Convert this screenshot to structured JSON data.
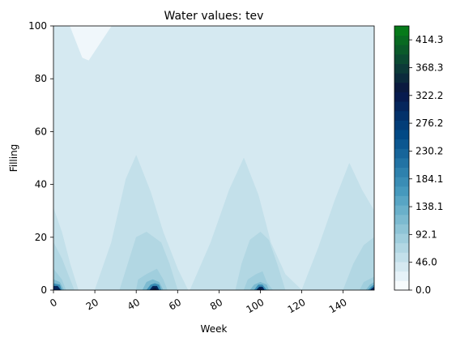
{
  "chart_data": {
    "type": "heatmap",
    "subtype": "filled-contour",
    "title": "Water values: tev",
    "xlabel": "Week",
    "ylabel": "Filling",
    "xlim": [
      0,
      155
    ],
    "ylim": [
      0,
      100
    ],
    "xticks": [
      "0",
      "20",
      "40",
      "60",
      "80",
      "100",
      "120",
      "140"
    ],
    "yticks": [
      "0",
      "20",
      "40",
      "60",
      "80",
      "100"
    ],
    "colorbar": {
      "min": 0.0,
      "max": 437.3,
      "tick_labels": [
        "0.0",
        "46.0",
        "92.1",
        "138.1",
        "184.1",
        "230.2",
        "276.2",
        "322.2",
        "368.3",
        "414.3"
      ],
      "colors": [
        "#f7fbfd",
        "#e6f2f8",
        "#d5e9f1",
        "#c3e0ea",
        "#b2d7e3",
        "#a0cedd",
        "#8ec4d6",
        "#7cbad0",
        "#6ab0ca",
        "#58a5c4",
        "#4699bd",
        "#3a8db5",
        "#2e81ad",
        "#2273a4",
        "#17659a",
        "#0c5790",
        "#024985",
        "#023d78",
        "#03316a",
        "#05265c",
        "#071b4e",
        "#0a1a3f",
        "#0b2a3c",
        "#0c3a38",
        "#0b4a32",
        "#0a5a2a",
        "#086a22",
        "#067a1a"
      ]
    },
    "regions": [
      {
        "level": 0,
        "color": "#d5e9f1",
        "points": [
          [
            0,
            0
          ],
          [
            155,
            0
          ],
          [
            155,
            100
          ],
          [
            0,
            100
          ]
        ]
      },
      {
        "level": -1,
        "color": "#f0f7fb",
        "points": [
          [
            8,
            100
          ],
          [
            14,
            88
          ],
          [
            17,
            87
          ],
          [
            28,
            100
          ]
        ]
      },
      {
        "level": 1,
        "color": "#c3e0ea",
        "points": [
          [
            0,
            31
          ],
          [
            4,
            22
          ],
          [
            8,
            10
          ],
          [
            12,
            0
          ],
          [
            0,
            0
          ]
        ]
      },
      {
        "level": 1,
        "color": "#c3e0ea",
        "points": [
          [
            20,
            0
          ],
          [
            28,
            18
          ],
          [
            35,
            42
          ],
          [
            40,
            51
          ],
          [
            47,
            37
          ],
          [
            53,
            22
          ],
          [
            60,
            8
          ],
          [
            65,
            0
          ]
        ]
      },
      {
        "level": 1,
        "color": "#c3e0ea",
        "points": [
          [
            66,
            0
          ],
          [
            76,
            18
          ],
          [
            85,
            38
          ],
          [
            92,
            50
          ],
          [
            99,
            36
          ],
          [
            105,
            18
          ],
          [
            112,
            6
          ],
          [
            120,
            0
          ]
        ]
      },
      {
        "level": 1,
        "color": "#c3e0ea",
        "points": [
          [
            120,
            0
          ],
          [
            128,
            16
          ],
          [
            136,
            34
          ],
          [
            143,
            48
          ],
          [
            149,
            38
          ],
          [
            155,
            30
          ],
          [
            155,
            0
          ]
        ]
      },
      {
        "level": 2,
        "color": "#b2d7e3",
        "points": [
          [
            0,
            18
          ],
          [
            4,
            12
          ],
          [
            7,
            6
          ],
          [
            10,
            0
          ],
          [
            0,
            0
          ]
        ]
      },
      {
        "level": 2,
        "color": "#b2d7e3",
        "points": [
          [
            32,
            0
          ],
          [
            36,
            10
          ],
          [
            40,
            20
          ],
          [
            45,
            22
          ],
          [
            52,
            18
          ],
          [
            56,
            10
          ],
          [
            60,
            0
          ]
        ]
      },
      {
        "level": 2,
        "color": "#b2d7e3",
        "points": [
          [
            88,
            0
          ],
          [
            91,
            10
          ],
          [
            95,
            19
          ],
          [
            100,
            22
          ],
          [
            104,
            19
          ],
          [
            108,
            10
          ],
          [
            112,
            0
          ]
        ]
      },
      {
        "level": 2,
        "color": "#b2d7e3",
        "points": [
          [
            140,
            0
          ],
          [
            145,
            10
          ],
          [
            150,
            17
          ],
          [
            155,
            20
          ],
          [
            155,
            0
          ]
        ]
      },
      {
        "level": 3,
        "color": "#a0cedd",
        "points": [
          [
            0,
            8
          ],
          [
            4,
            4
          ],
          [
            6,
            0
          ],
          [
            0,
            0
          ]
        ]
      },
      {
        "level": 3,
        "color": "#a0cedd",
        "points": [
          [
            40,
            0
          ],
          [
            41,
            4
          ],
          [
            45,
            6
          ],
          [
            50,
            8
          ],
          [
            53,
            4
          ],
          [
            55,
            0
          ]
        ]
      },
      {
        "level": 3,
        "color": "#a0cedd",
        "points": [
          [
            92,
            0
          ],
          [
            94,
            4
          ],
          [
            98,
            6
          ],
          [
            101,
            7
          ],
          [
            103,
            3
          ],
          [
            106,
            0
          ]
        ]
      },
      {
        "level": 3,
        "color": "#a0cedd",
        "points": [
          [
            148,
            0
          ],
          [
            150,
            3
          ],
          [
            155,
            5
          ],
          [
            155,
            0
          ]
        ]
      },
      {
        "level": 4,
        "color": "#7cbad0",
        "points": [
          [
            0,
            4
          ],
          [
            3,
            3
          ],
          [
            5,
            0
          ],
          [
            0,
            0
          ]
        ]
      },
      {
        "level": 4,
        "color": "#7cbad0",
        "points": [
          [
            43,
            0
          ],
          [
            45,
            3
          ],
          [
            48,
            4
          ],
          [
            51,
            3
          ],
          [
            53,
            0
          ]
        ]
      },
      {
        "level": 4,
        "color": "#7cbad0",
        "points": [
          [
            95,
            0
          ],
          [
            97,
            2
          ],
          [
            100,
            3
          ],
          [
            103,
            2
          ],
          [
            104,
            0
          ]
        ]
      },
      {
        "level": 4,
        "color": "#7cbad0",
        "points": [
          [
            151,
            0
          ],
          [
            153,
            2
          ],
          [
            155,
            3
          ],
          [
            155,
            0
          ]
        ]
      },
      {
        "level": 5,
        "color": "#3a8db5",
        "points": [
          [
            0,
            2.5
          ],
          [
            3,
            2
          ],
          [
            4,
            0
          ],
          [
            0,
            0
          ]
        ]
      },
      {
        "level": 5,
        "color": "#3a8db5",
        "points": [
          [
            45,
            0
          ],
          [
            47,
            2
          ],
          [
            49,
            2.5
          ],
          [
            51,
            2
          ],
          [
            52,
            0
          ]
        ]
      },
      {
        "level": 5,
        "color": "#3a8db5",
        "points": [
          [
            97,
            0
          ],
          [
            99,
            2
          ],
          [
            101,
            2
          ],
          [
            103,
            0
          ]
        ]
      },
      {
        "level": 5,
        "color": "#3a8db5",
        "points": [
          [
            152,
            0
          ],
          [
            154,
            1.5
          ],
          [
            155,
            2
          ],
          [
            155,
            0
          ]
        ]
      },
      {
        "level": 6,
        "color": "#05265c",
        "points": [
          [
            0,
            1.5
          ],
          [
            2,
            1.5
          ],
          [
            3.5,
            0
          ],
          [
            0,
            0
          ]
        ]
      },
      {
        "level": 6,
        "color": "#05265c",
        "points": [
          [
            46.5,
            0
          ],
          [
            48,
            1.5
          ],
          [
            50,
            1.5
          ],
          [
            51,
            0
          ]
        ]
      },
      {
        "level": 6,
        "color": "#05265c",
        "points": [
          [
            98,
            0
          ],
          [
            99.5,
            1.2
          ],
          [
            101,
            1.2
          ],
          [
            102,
            0
          ]
        ]
      },
      {
        "level": 6,
        "color": "#05265c",
        "points": [
          [
            153,
            0
          ],
          [
            154.5,
            1
          ],
          [
            155,
            1
          ],
          [
            155,
            0
          ]
        ]
      },
      {
        "level": 7,
        "color": "#0a1a3f",
        "points": [
          [
            47.5,
            0
          ],
          [
            48.5,
            0.8
          ],
          [
            49.5,
            0.8
          ],
          [
            50,
            0
          ]
        ]
      },
      {
        "level": 7,
        "color": "#0a1a3f",
        "points": [
          [
            99,
            0
          ],
          [
            100,
            0.7
          ],
          [
            101,
            0
          ]
        ]
      }
    ]
  }
}
